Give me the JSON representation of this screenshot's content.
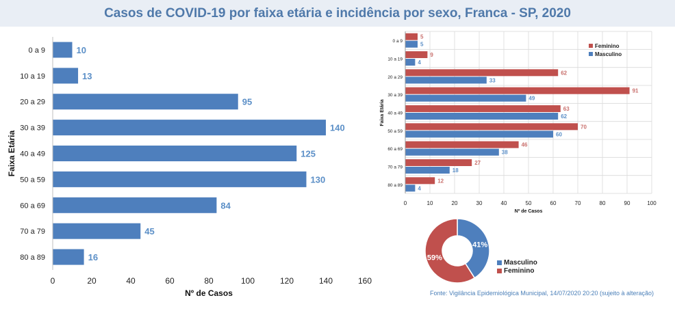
{
  "title": "Casos de COVID-19 por faixa etária e incidência por sexo, Franca - SP, 2020",
  "source": "Fonte: Vigilância Epidemiológica Municipal, 14/07/2020 20:20 (sujeito à alteração)",
  "colors": {
    "blue": "#4e7fbd",
    "red": "#c0504d",
    "blue_label": "#5b8fc7",
    "red_label": "#c9706d",
    "grid": "#d9d9d9"
  },
  "chart_data": [
    {
      "type": "bar",
      "orientation": "horizontal",
      "categories": [
        "0 a 9",
        "10 a 19",
        "20 a 29",
        "30 a 39",
        "40 a 49",
        "50 a 59",
        "60  a 69",
        "70 a 79",
        "80 a 89"
      ],
      "values": [
        10,
        13,
        95,
        140,
        125,
        130,
        84,
        45,
        16
      ],
      "xlabel": "Nº de Casos",
      "ylabel": "Faixa Etária",
      "xlim": [
        0,
        160
      ],
      "xticks": [
        0,
        20,
        40,
        60,
        80,
        100,
        120,
        140,
        160
      ],
      "grid": false
    },
    {
      "type": "bar",
      "orientation": "horizontal",
      "categories": [
        "0 a 9",
        "10 a 19",
        "20 a 29",
        "30 a 39",
        "40 a 49",
        "50 a 59",
        "60  a 69",
        "70 a 79",
        "80 a 89"
      ],
      "series": [
        {
          "name": "Feminino",
          "values": [
            5,
            9,
            62,
            91,
            63,
            70,
            46,
            27,
            12
          ]
        },
        {
          "name": "Masculino",
          "values": [
            5,
            4,
            33,
            49,
            62,
            60,
            38,
            18,
            4
          ]
        }
      ],
      "xlabel": "Nº de Casos",
      "ylabel": "Faixa Etária",
      "xlim": [
        0,
        100
      ],
      "xticks": [
        0,
        10,
        20,
        30,
        40,
        50,
        60,
        70,
        80,
        90,
        100
      ],
      "legend": "top-right",
      "grid": true
    },
    {
      "type": "pie",
      "style": "donut",
      "labels": [
        "Masculino",
        "Feminino"
      ],
      "values": [
        41,
        59
      ],
      "value_labels": [
        "41%",
        "59%"
      ],
      "legend": "right"
    }
  ]
}
